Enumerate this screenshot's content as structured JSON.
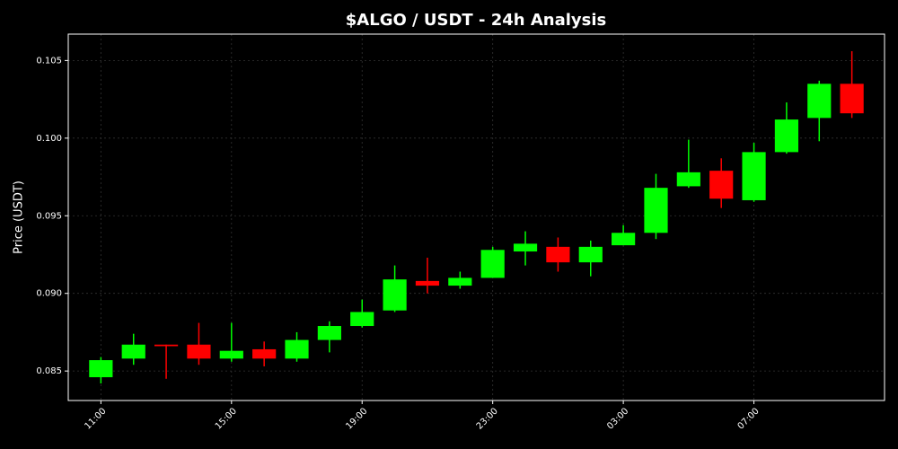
{
  "chart_data": {
    "type": "candlestick",
    "title": "$ALGO / USDT - 24h Analysis",
    "y_label": "Price (USDT)",
    "categories": [
      "11:00",
      null,
      null,
      null,
      "15:00",
      null,
      null,
      null,
      "19:00",
      null,
      null,
      null,
      "23:00",
      null,
      null,
      null,
      "03:00",
      null,
      null,
      null,
      "07:00",
      null,
      null,
      null
    ],
    "open": [
      0.0846,
      0.0858,
      0.0867,
      0.0867,
      0.0858,
      0.0864,
      0.0858,
      0.087,
      0.0879,
      0.0889,
      0.0908,
      0.0905,
      0.091,
      0.0927,
      0.093,
      0.092,
      0.0931,
      0.0939,
      0.0969,
      0.0979,
      0.096,
      0.0991,
      0.1013,
      0.1035
    ],
    "high": [
      0.0859,
      0.0874,
      0.0867,
      0.0881,
      0.0881,
      0.0869,
      0.0875,
      0.0882,
      0.0896,
      0.0918,
      0.0923,
      0.0914,
      0.093,
      0.094,
      0.0936,
      0.0934,
      0.0944,
      0.0977,
      0.0999,
      0.0987,
      0.0997,
      0.1023,
      0.1037,
      0.1056
    ],
    "low": [
      0.0842,
      0.0854,
      0.0845,
      0.0854,
      0.0856,
      0.0853,
      0.0856,
      0.0862,
      0.0878,
      0.0888,
      0.09,
      0.0903,
      0.091,
      0.0918,
      0.0914,
      0.0911,
      0.0931,
      0.0935,
      0.0968,
      0.0955,
      0.0959,
      0.099,
      0.0998,
      0.1013
    ],
    "close": [
      0.0857,
      0.0867,
      0.0866,
      0.0858,
      0.0863,
      0.0858,
      0.087,
      0.0879,
      0.0888,
      0.0909,
      0.0905,
      0.091,
      0.0928,
      0.0932,
      0.092,
      0.093,
      0.0939,
      0.0968,
      0.0978,
      0.0961,
      0.0991,
      0.1012,
      0.1035,
      0.1016
    ],
    "up_color": "#00ff00",
    "down_color": "#ff0000",
    "ylim": [
      0.0831,
      0.1067
    ],
    "yticks": [
      0.085,
      {
        "value": 0.09,
        "label": "0.090"
      },
      0.095,
      {
        "value": 0.1,
        "label": "0.100"
      },
      0.105
    ],
    "grid": true
  }
}
